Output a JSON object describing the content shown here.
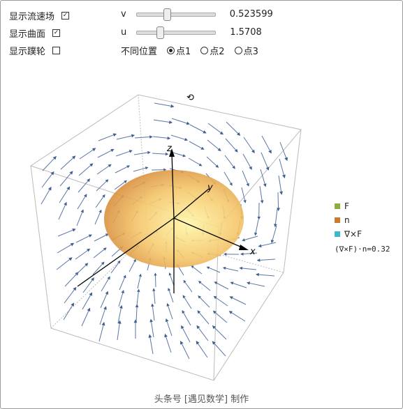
{
  "controls": {
    "checkboxes": [
      {
        "label": "显示流速场",
        "checked": true
      },
      {
        "label": "显示曲面",
        "checked": true
      },
      {
        "label": "显示蹼轮",
        "checked": false
      }
    ],
    "sliders": [
      {
        "name": "v",
        "value": "0.523599"
      },
      {
        "name": "u",
        "value": "1.5708"
      }
    ],
    "radio": {
      "label": "不同位置",
      "options": [
        "点1",
        "点2",
        "点3"
      ],
      "selected": 0
    }
  },
  "plot": {
    "axis_labels": {
      "x": "x",
      "y": "y",
      "z": "z"
    },
    "legend": [
      "F",
      "n",
      "∇×F"
    ],
    "flux_label": "(∇×F)·n=0.32"
  },
  "footer": "头条号 [遇见数学] 制作"
}
